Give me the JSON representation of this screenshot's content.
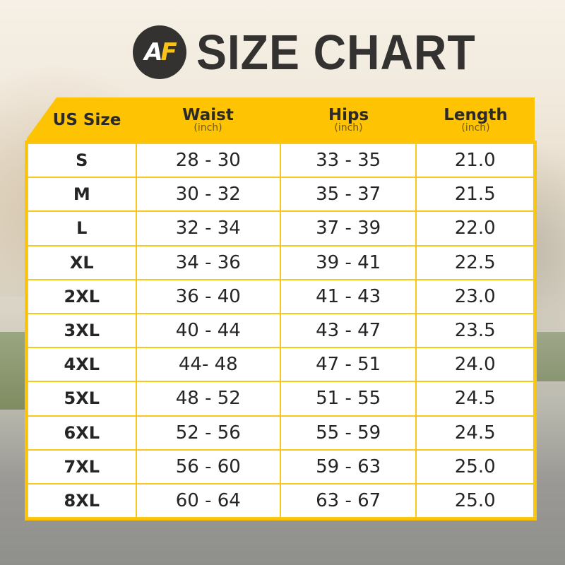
{
  "title": {
    "logo": "AF",
    "logo_a": "A",
    "logo_f": "F",
    "text": "SIZE CHART"
  },
  "colors": {
    "accent": "#fec404",
    "text": "#333231"
  },
  "table": {
    "headers": [
      {
        "label": "US Size",
        "unit": ""
      },
      {
        "label": "Waist",
        "unit": "(inch)"
      },
      {
        "label": "Hips",
        "unit": "(inch)"
      },
      {
        "label": "Length",
        "unit": "(inch)"
      }
    ],
    "rows": [
      [
        "S",
        "28 - 30",
        "33 - 35",
        "21.0"
      ],
      [
        "M",
        "30 - 32",
        "35 - 37",
        "21.5"
      ],
      [
        "L",
        "32 - 34",
        "37 - 39",
        "22.0"
      ],
      [
        "XL",
        "34 - 36",
        "39 - 41",
        "22.5"
      ],
      [
        "2XL",
        "36 - 40",
        "41 - 43",
        "23.0"
      ],
      [
        "3XL",
        "40 - 44",
        "43 - 47",
        "23.5"
      ],
      [
        "4XL",
        "44- 48",
        "47 - 51",
        "24.0"
      ],
      [
        "5XL",
        "48 - 52",
        "51 - 55",
        "24.5"
      ],
      [
        "6XL",
        "52 - 56",
        "55 - 59",
        "24.5"
      ],
      [
        "7XL",
        "56 - 60",
        "59 - 63",
        "25.0"
      ],
      [
        "8XL",
        "60 - 64",
        "63 - 67",
        "25.0"
      ]
    ]
  }
}
